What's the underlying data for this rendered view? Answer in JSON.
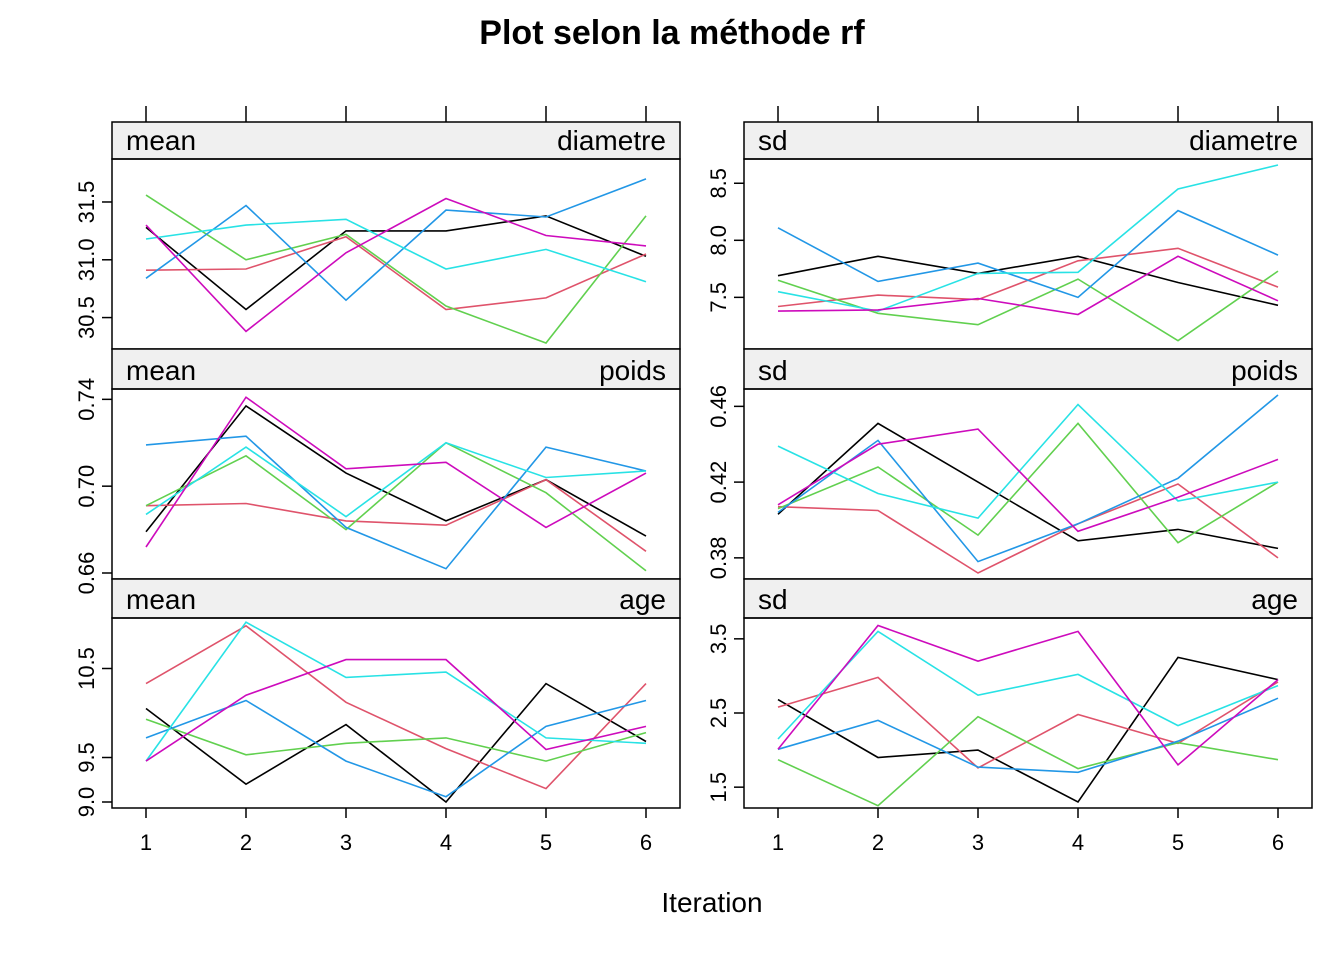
{
  "title": "Plot selon la méthode rf",
  "xlabel": "Iteration",
  "colors": [
    "#000000",
    "#DF536B",
    "#61D04F",
    "#2297E6",
    "#28E2E5",
    "#CD0BBC"
  ],
  "chart_data": {
    "type": "line",
    "title": "Plot selon la méthode rf",
    "xlabel": "Iteration",
    "x": [
      1,
      2,
      3,
      4,
      5,
      6
    ],
    "x_ticks": [
      "1",
      "2",
      "3",
      "4",
      "5",
      "6"
    ],
    "panels": [
      {
        "stat": "mean",
        "variable": "diametre",
        "ylim": [
          30.28,
          31.82
        ],
        "y_ticks": [
          {
            "value": 30.5,
            "label": "30.5"
          },
          {
            "value": 31.0,
            "label": "31.0"
          },
          {
            "value": 31.5,
            "label": "31.5"
          }
        ],
        "series": [
          {
            "values": [
              31.28,
              30.57,
              31.25,
              31.25,
              31.38,
              31.03
            ]
          },
          {
            "values": [
              30.91,
              30.92,
              31.2,
              30.57,
              30.67,
              31.05
            ]
          },
          {
            "values": [
              31.56,
              31.0,
              31.22,
              30.6,
              30.28,
              31.38
            ]
          },
          {
            "values": [
              30.84,
              31.47,
              30.65,
              31.43,
              31.37,
              31.7
            ]
          },
          {
            "values": [
              31.18,
              31.3,
              31.35,
              30.92,
              31.09,
              30.81
            ]
          },
          {
            "values": [
              31.3,
              30.38,
              31.06,
              31.53,
              31.21,
              31.12
            ]
          }
        ]
      },
      {
        "stat": "sd",
        "variable": "diametre",
        "ylim": [
          7.1,
          8.66
        ],
        "y_ticks": [
          {
            "value": 7.5,
            "label": "7.5"
          },
          {
            "value": 8.0,
            "label": "8.0"
          },
          {
            "value": 8.5,
            "label": "8.5"
          }
        ],
        "series": [
          {
            "values": [
              7.69,
              7.86,
              7.71,
              7.86,
              7.63,
              7.43
            ]
          },
          {
            "values": [
              7.42,
              7.52,
              7.48,
              7.82,
              7.93,
              7.59
            ]
          },
          {
            "values": [
              7.65,
              7.36,
              7.26,
              7.66,
              7.12,
              7.73
            ]
          },
          {
            "values": [
              8.11,
              7.64,
              7.8,
              7.5,
              8.26,
              7.87
            ]
          },
          {
            "values": [
              7.55,
              7.38,
              7.71,
              7.72,
              8.45,
              8.66
            ]
          },
          {
            "values": [
              7.38,
              7.39,
              7.49,
              7.35,
              7.86,
              7.47
            ]
          }
        ]
      },
      {
        "stat": "mean",
        "variable": "poids",
        "ylim": [
          0.66,
          0.742
        ],
        "y_ticks": [
          {
            "value": 0.66,
            "label": "0.66"
          },
          {
            "value": 0.7,
            "label": "0.70"
          },
          {
            "value": 0.74,
            "label": "0.74"
          }
        ],
        "series": [
          {
            "values": [
              0.679,
              0.737,
              0.706,
              0.684,
              0.703,
              0.677
            ]
          },
          {
            "values": [
              0.691,
              0.692,
              0.684,
              0.682,
              0.703,
              0.67
            ]
          },
          {
            "values": [
              0.691,
              0.714,
              0.68,
              0.72,
              0.697,
              0.661
            ]
          },
          {
            "values": [
              0.719,
              0.723,
              0.681,
              0.662,
              0.718,
              0.707
            ]
          },
          {
            "values": [
              0.687,
              0.718,
              0.686,
              0.72,
              0.704,
              0.707
            ]
          },
          {
            "values": [
              0.672,
              0.741,
              0.708,
              0.711,
              0.681,
              0.706
            ]
          }
        ]
      },
      {
        "stat": "sd",
        "variable": "poids",
        "ylim": [
          0.372,
          0.466
        ],
        "y_ticks": [
          {
            "value": 0.38,
            "label": "0.38"
          },
          {
            "value": 0.42,
            "label": "0.42"
          },
          {
            "value": 0.46,
            "label": "0.46"
          }
        ],
        "series": [
          {
            "values": [
              0.403,
              0.451,
              0.42,
              0.389,
              0.395,
              0.385
            ]
          },
          {
            "values": [
              0.407,
              0.405,
              0.372,
              0.398,
              0.419,
              0.38
            ]
          },
          {
            "values": [
              0.406,
              0.428,
              0.392,
              0.451,
              0.388,
              0.42
            ]
          },
          {
            "values": [
              0.404,
              0.442,
              0.378,
              0.398,
              0.422,
              0.466
            ]
          },
          {
            "values": [
              0.439,
              0.414,
              0.401,
              0.461,
              0.41,
              0.42
            ]
          },
          {
            "values": [
              0.408,
              0.44,
              0.448,
              0.394,
              0.412,
              0.432
            ]
          }
        ]
      },
      {
        "stat": "mean",
        "variable": "age",
        "ylim": [
          9.0,
          11.0
        ],
        "y_ticks": [
          {
            "value": 9.0,
            "label": "9.0"
          },
          {
            "value": 9.5,
            "label": "9.5"
          },
          {
            "value": 10.5,
            "label": "10.5"
          }
        ],
        "series": [
          {
            "values": [
              10.05,
              9.2,
              9.87,
              9.0,
              10.33,
              9.68
            ]
          },
          {
            "values": [
              10.33,
              10.98,
              10.12,
              9.6,
              9.15,
              10.33
            ]
          },
          {
            "values": [
              9.93,
              9.53,
              9.66,
              9.72,
              9.46,
              9.78
            ]
          },
          {
            "values": [
              9.72,
              10.14,
              9.46,
              9.06,
              9.85,
              10.14
            ]
          },
          {
            "values": [
              9.46,
              11.02,
              10.4,
              10.46,
              9.72,
              9.66
            ]
          },
          {
            "values": [
              9.46,
              10.2,
              10.6,
              10.6,
              9.59,
              9.85
            ]
          }
        ]
      },
      {
        "stat": "sd",
        "variable": "age",
        "ylim": [
          1.3,
          3.7
        ],
        "y_ticks": [
          {
            "value": 1.5,
            "label": "1.5"
          },
          {
            "value": 2.5,
            "label": "2.5"
          },
          {
            "value": 3.5,
            "label": "3.5"
          }
        ],
        "series": [
          {
            "values": [
              2.68,
              1.9,
              2.0,
              1.3,
              3.25,
              2.95
            ]
          },
          {
            "values": [
              2.58,
              2.98,
              1.76,
              2.48,
              2.09,
              2.92
            ]
          },
          {
            "values": [
              1.87,
              1.25,
              2.45,
              1.75,
              2.1,
              1.87
            ]
          },
          {
            "values": [
              2.01,
              2.4,
              1.77,
              1.7,
              2.12,
              2.7
            ]
          },
          {
            "values": [
              2.15,
              3.6,
              2.74,
              3.02,
              2.33,
              2.87
            ]
          },
          {
            "values": [
              2.01,
              3.68,
              3.2,
              3.6,
              1.8,
              2.95
            ]
          }
        ]
      }
    ]
  }
}
